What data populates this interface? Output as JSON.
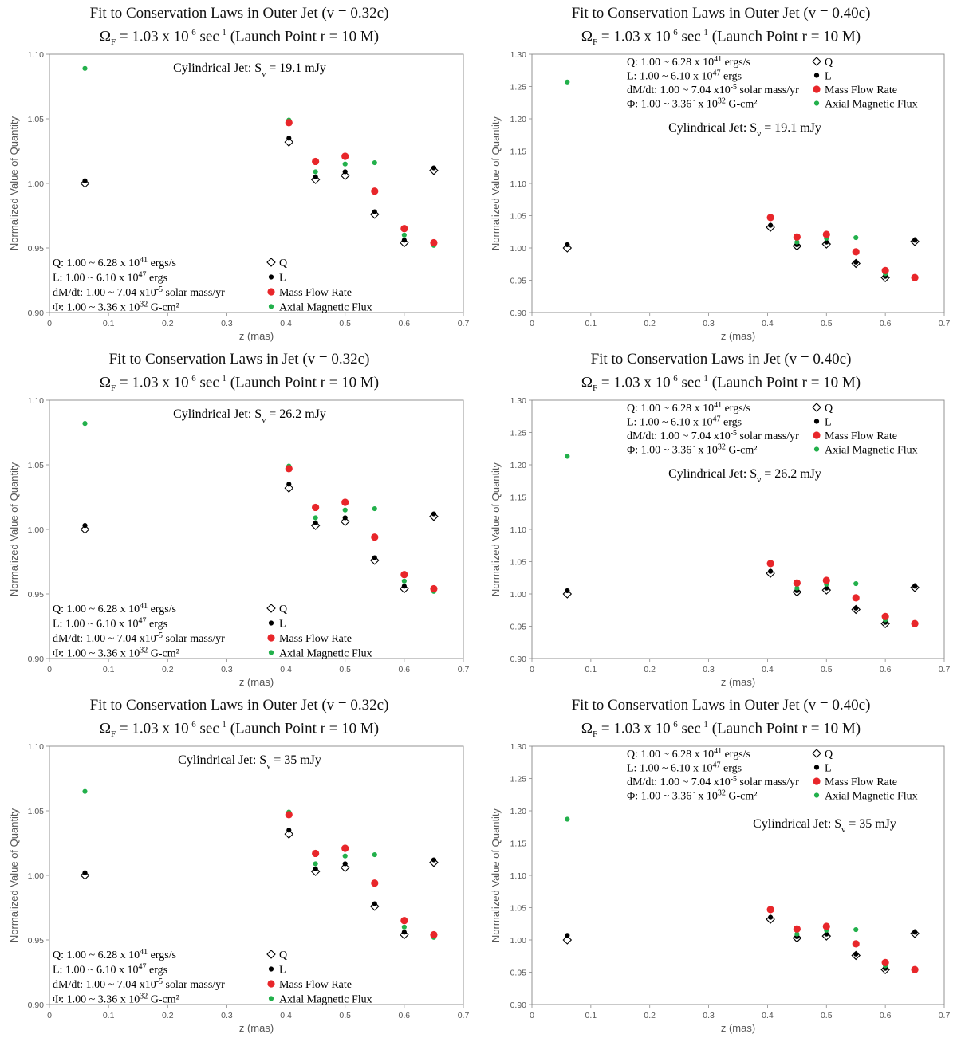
{
  "series_meta": [
    {
      "key": "Q",
      "name": "Q",
      "marker": "diamond",
      "color": "#000000"
    },
    {
      "key": "L",
      "name": "L",
      "marker": "dot",
      "color": "#000000"
    },
    {
      "key": "M",
      "name": "Mass Flow Rate",
      "marker": "circle",
      "color": "#e8262a"
    },
    {
      "key": "F",
      "name": "Axial Magnetic Flux",
      "marker": "dot",
      "color": "#22b04b"
    }
  ],
  "chart_data": [
    {
      "type": "scatter",
      "title_main": "Fit to Conservation Laws in Outer Jet (v = 0.32c)",
      "omega_prefix": "Ω",
      "omega_sub": "F",
      "omega_mid": " = 1.03 x 10",
      "omega_exp": "-6",
      "omega_suffix": " sec",
      "omega_exp2": "-1",
      "omega_tail": " (Launch Point r = 10 M)",
      "xlabel": "z (mas)",
      "ylabel": "Normalized Value of Quantity",
      "xlim": [
        0,
        0.7
      ],
      "ylim": [
        0.9,
        1.1
      ],
      "xticks": [
        "0",
        "0.1",
        "0.2",
        "0.3",
        "0.4",
        "0.5",
        "0.6",
        "0.7"
      ],
      "yticks": [
        "0.90",
        "0.95",
        "1.00",
        "1.05",
        "1.10"
      ],
      "jet_pre": "Cylindrical Jet: S",
      "jet_sub": "ν",
      "jet_post": " = 19.1 mJy",
      "ann_lines": [
        {
          "pre": "Q: 1.00 ~ 6.28 x 10",
          "exp": "41",
          "post": " ergs/s"
        },
        {
          "pre": "L: 1.00 ~ 6.10 x 10",
          "exp": "47",
          "post": " ergs"
        },
        {
          "pre": "dM/dt: 1.00 ~ 7.04 x10",
          "exp": "-5",
          "post": " solar mass/yr"
        },
        {
          "pre": "Φ: 1.00 ~ 3.36 x 10",
          "exp": "32",
          "post": " G-cm²"
        }
      ],
      "x": [
        0.06,
        0.405,
        0.45,
        0.5,
        0.55,
        0.6,
        0.65
      ],
      "series": [
        {
          "key": "Q",
          "values": [
            1.0,
            1.032,
            1.003,
            1.006,
            0.976,
            0.954,
            1.01
          ]
        },
        {
          "key": "L",
          "values": [
            1.002,
            1.035,
            1.005,
            1.009,
            0.978,
            0.956,
            1.012
          ]
        },
        {
          "key": "M",
          "values": [
            null,
            1.047,
            1.017,
            1.021,
            0.994,
            0.965,
            0.954
          ]
        },
        {
          "key": "F",
          "values": [
            1.089,
            1.049,
            1.009,
            1.015,
            1.016,
            0.96,
            0.952
          ]
        }
      ]
    },
    {
      "type": "scatter",
      "title_main": "Fit to Conservation Laws in Outer Jet (v = 0.40c)",
      "omega_prefix": "Ω",
      "omega_sub": "F",
      "omega_mid": " = 1.03 x 10",
      "omega_exp": "-6",
      "omega_suffix": " sec",
      "omega_exp2": "-1",
      "omega_tail": " (Launch Point r = 10 M)",
      "xlabel": "z (mas)",
      "ylabel": "Normalized Value of Quantity",
      "xlim": [
        0,
        0.7
      ],
      "ylim": [
        0.9,
        1.3
      ],
      "xticks": [
        "0",
        "0.1",
        "0.2",
        "0.3",
        "0.4",
        "0.5",
        "0.6",
        "0.7"
      ],
      "yticks": [
        "0.90",
        "0.95",
        "1.00",
        "1.05",
        "1.10",
        "1.15",
        "1.20",
        "1.25",
        "1.30"
      ],
      "jet_pre": "Cylindrical Jet: S",
      "jet_sub": "ν",
      "jet_post": " = 19.1 mJy",
      "ann_lines": [
        {
          "pre": "Q: 1.00 ~ 6.28 x 10",
          "exp": "41",
          "post": " ergs/s"
        },
        {
          "pre": "L: 1.00 ~ 6.10 x 10",
          "exp": "47",
          "post": " ergs"
        },
        {
          "pre": "dM/dt: 1.00 ~ 7.04 x10",
          "exp": "-5",
          "post": " solar mass/yr"
        },
        {
          "pre": "Φ: 1.00 ~ 3.36` x 10",
          "exp": "32",
          "post": " G-cm²"
        }
      ],
      "x": [
        0.06,
        0.405,
        0.45,
        0.5,
        0.55,
        0.6,
        0.65
      ],
      "series": [
        {
          "key": "Q",
          "values": [
            1.0,
            1.032,
            1.003,
            1.006,
            0.976,
            0.954,
            1.01
          ]
        },
        {
          "key": "L",
          "values": [
            1.005,
            1.035,
            1.005,
            1.009,
            0.978,
            0.956,
            1.012
          ]
        },
        {
          "key": "M",
          "values": [
            null,
            1.047,
            1.017,
            1.021,
            0.994,
            0.965,
            0.954
          ]
        },
        {
          "key": "F",
          "values": [
            1.257,
            1.049,
            1.009,
            1.015,
            1.016,
            0.96,
            0.952
          ]
        }
      ]
    },
    {
      "type": "scatter",
      "title_main": "Fit to Conservation Laws in Jet (v = 0.32c)",
      "omega_prefix": "Ω",
      "omega_sub": "F",
      "omega_mid": " = 1.03 x 10",
      "omega_exp": "-6",
      "omega_suffix": " sec",
      "omega_exp2": "-1",
      "omega_tail": " (Launch Point r = 10 M)",
      "xlabel": "z (mas)",
      "ylabel": "Normalized Value of Quantity",
      "xlim": [
        0,
        0.7
      ],
      "ylim": [
        0.9,
        1.1
      ],
      "xticks": [
        "0",
        "0.1",
        "0.2",
        "0.3",
        "0.4",
        "0.5",
        "0.6",
        "0.7"
      ],
      "yticks": [
        "0.90",
        "0.95",
        "1.00",
        "1.05",
        "1.10"
      ],
      "jet_pre": "Cylindrical Jet: S",
      "jet_sub": "ν",
      "jet_post": " = 26.2 mJy",
      "ann_lines": [
        {
          "pre": "Q: 1.00 ~ 6.28 x 10",
          "exp": "41",
          "post": " ergs/s"
        },
        {
          "pre": "L: 1.00 ~ 6.10 x 10",
          "exp": "47",
          "post": " ergs"
        },
        {
          "pre": "dM/dt: 1.00 ~ 7.04 x10",
          "exp": "-5",
          "post": " solar mass/yr"
        },
        {
          "pre": "Φ: 1.00 ~ 3.36 x 10",
          "exp": "32",
          "post": " G-cm²"
        }
      ],
      "x": [
        0.06,
        0.405,
        0.45,
        0.5,
        0.55,
        0.6,
        0.65
      ],
      "series": [
        {
          "key": "Q",
          "values": [
            1.0,
            1.032,
            1.003,
            1.006,
            0.976,
            0.954,
            1.01
          ]
        },
        {
          "key": "L",
          "values": [
            1.003,
            1.035,
            1.005,
            1.009,
            0.978,
            0.956,
            1.012
          ]
        },
        {
          "key": "M",
          "values": [
            null,
            1.047,
            1.017,
            1.021,
            0.994,
            0.965,
            0.954
          ]
        },
        {
          "key": "F",
          "values": [
            1.082,
            1.049,
            1.009,
            1.015,
            1.016,
            0.96,
            0.952
          ]
        }
      ]
    },
    {
      "type": "scatter",
      "title_main": "Fit to Conservation Laws in Jet (v = 0.40c)",
      "omega_prefix": "Ω",
      "omega_sub": "F",
      "omega_mid": " = 1.03 x 10",
      "omega_exp": "-6",
      "omega_suffix": " sec",
      "omega_exp2": "-1",
      "omega_tail": " (Launch Point r = 10 M)",
      "xlabel": "z (mas)",
      "ylabel": "Normalized Value of Quantity",
      "xlim": [
        0,
        0.7
      ],
      "ylim": [
        0.9,
        1.3
      ],
      "xticks": [
        "0",
        "0.1",
        "0.2",
        "0.3",
        "0.4",
        "0.5",
        "0.6",
        "0.7"
      ],
      "yticks": [
        "0.90",
        "0.95",
        "1.00",
        "1.05",
        "1.10",
        "1.15",
        "1.20",
        "1.25",
        "1.30"
      ],
      "jet_pre": "Cylindrical Jet: S",
      "jet_sub": "ν",
      "jet_post": " = 26.2 mJy",
      "ann_lines": [
        {
          "pre": "Q: 1.00 ~ 6.28 x 10",
          "exp": "41",
          "post": " ergs/s"
        },
        {
          "pre": "L: 1.00 ~ 6.10 x 10",
          "exp": "47",
          "post": " ergs"
        },
        {
          "pre": "dM/dt: 1.00 ~ 7.04 x10",
          "exp": "-5",
          "post": " solar mass/yr"
        },
        {
          "pre": "Φ: 1.00 ~ 3.36` x 10",
          "exp": "32",
          "post": " G-cm²"
        }
      ],
      "x": [
        0.06,
        0.405,
        0.45,
        0.5,
        0.55,
        0.6,
        0.65
      ],
      "series": [
        {
          "key": "Q",
          "values": [
            1.0,
            1.032,
            1.003,
            1.006,
            0.976,
            0.954,
            1.01
          ]
        },
        {
          "key": "L",
          "values": [
            1.005,
            1.035,
            1.005,
            1.009,
            0.978,
            0.956,
            1.012
          ]
        },
        {
          "key": "M",
          "values": [
            null,
            1.047,
            1.017,
            1.021,
            0.994,
            0.965,
            0.954
          ]
        },
        {
          "key": "F",
          "values": [
            1.213,
            1.049,
            1.009,
            1.015,
            1.016,
            0.96,
            0.952
          ]
        }
      ]
    },
    {
      "type": "scatter",
      "title_main": "Fit to Conservation Laws in Outer Jet (v = 0.32c)",
      "omega_prefix": "Ω",
      "omega_sub": "F",
      "omega_mid": " = 1.03 x 10",
      "omega_exp": "-6",
      "omega_suffix": " sec",
      "omega_exp2": "-1",
      "omega_tail": " (Launch Point r = 10 M)",
      "xlabel": "z (mas)",
      "ylabel": "Normalized Value of Quantity",
      "xlim": [
        0,
        0.7
      ],
      "ylim": [
        0.9,
        1.1
      ],
      "xticks": [
        "0",
        "0.1",
        "0.2",
        "0.3",
        "0.4",
        "0.5",
        "0.6",
        "0.7"
      ],
      "yticks": [
        "0.90",
        "0.95",
        "1.00",
        "1.05",
        "1.10"
      ],
      "jet_pre": "Cylindrical Jet: S",
      "jet_sub": "ν",
      "jet_post": " = 35 mJy",
      "ann_lines": [
        {
          "pre": "Q: 1.00 ~ 6.28 x 10",
          "exp": "41",
          "post": " ergs/s"
        },
        {
          "pre": "L: 1.00 ~ 6.10 x 10",
          "exp": "47",
          "post": " ergs"
        },
        {
          "pre": "dM/dt: 1.00 ~ 7.04 x10",
          "exp": "-5",
          "post": " solar mass/yr"
        },
        {
          "pre": "Φ: 1.00 ~ 3.36 x 10",
          "exp": "32",
          "post": " G-cm²"
        }
      ],
      "x": [
        0.06,
        0.405,
        0.45,
        0.5,
        0.55,
        0.6,
        0.65
      ],
      "series": [
        {
          "key": "Q",
          "values": [
            1.0,
            1.032,
            1.003,
            1.006,
            0.976,
            0.954,
            1.01
          ]
        },
        {
          "key": "L",
          "values": [
            1.002,
            1.035,
            1.005,
            1.009,
            0.978,
            0.956,
            1.012
          ]
        },
        {
          "key": "M",
          "values": [
            null,
            1.047,
            1.017,
            1.021,
            0.994,
            0.965,
            0.954
          ]
        },
        {
          "key": "F",
          "values": [
            1.065,
            1.049,
            1.009,
            1.015,
            1.016,
            0.96,
            0.952
          ]
        }
      ]
    },
    {
      "type": "scatter",
      "title_main": "Fit to Conservation Laws in Outer Jet (v = 0.40c)",
      "omega_prefix": "Ω",
      "omega_sub": "F",
      "omega_mid": " = 1.03 x 10",
      "omega_exp": "-6",
      "omega_suffix": " sec",
      "omega_exp2": "-1",
      "omega_tail": " (Launch Point r = 10 M)",
      "xlabel": "z (mas)",
      "ylabel": "Normalized Value of Quantity",
      "xlim": [
        0,
        0.7
      ],
      "ylim": [
        0.9,
        1.3
      ],
      "xticks": [
        "0",
        "0.1",
        "0.2",
        "0.3",
        "0.4",
        "0.5",
        "0.6",
        "0.7"
      ],
      "yticks": [
        "0.90",
        "0.95",
        "1.00",
        "1.05",
        "1.10",
        "1.15",
        "1.20",
        "1.25",
        "1.30"
      ],
      "jet_pre": "Cylindrical Jet: S",
      "jet_sub": "ν",
      "jet_post": " = 35 mJy",
      "ann_lines": [
        {
          "pre": "Q: 1.00 ~ 6.28 x 10",
          "exp": "41",
          "post": " ergs/s"
        },
        {
          "pre": "L: 1.00 ~ 6.10 x 10",
          "exp": "47",
          "post": " ergs"
        },
        {
          "pre": "dM/dt: 1.00 ~ 7.04 x10",
          "exp": "-5",
          "post": " solar mass/yr"
        },
        {
          "pre": "Φ: 1.00 ~ 3.36` x 10",
          "exp": "32",
          "post": " G-cm²"
        }
      ],
      "x": [
        0.06,
        0.405,
        0.45,
        0.5,
        0.55,
        0.6,
        0.65
      ],
      "series": [
        {
          "key": "Q",
          "values": [
            1.0,
            1.032,
            1.003,
            1.006,
            0.976,
            0.954,
            1.01
          ]
        },
        {
          "key": "L",
          "values": [
            1.007,
            1.035,
            1.005,
            1.009,
            0.978,
            0.956,
            1.012
          ]
        },
        {
          "key": "M",
          "values": [
            null,
            1.047,
            1.017,
            1.021,
            0.994,
            0.965,
            0.954
          ]
        },
        {
          "key": "F",
          "values": [
            1.187,
            1.049,
            1.009,
            1.015,
            1.016,
            0.96,
            0.952
          ]
        }
      ]
    }
  ]
}
